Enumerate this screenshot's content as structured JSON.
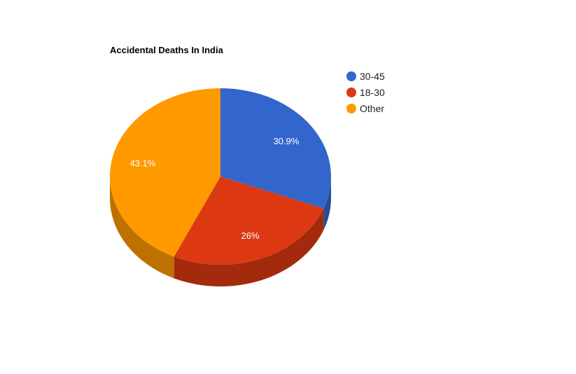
{
  "chart_data": {
    "type": "pie",
    "three_d": true,
    "title": "Accidental Deaths In India",
    "legend_position": "right",
    "slices": [
      {
        "label": "30-45",
        "value": 30.9,
        "display": "30.9%",
        "color": "#3366cc"
      },
      {
        "label": "18-30",
        "value": 26.0,
        "display": "26%",
        "color": "#dc3912"
      },
      {
        "label": "Other",
        "value": 43.1,
        "display": "43.1%",
        "color": "#ff9900"
      }
    ]
  }
}
